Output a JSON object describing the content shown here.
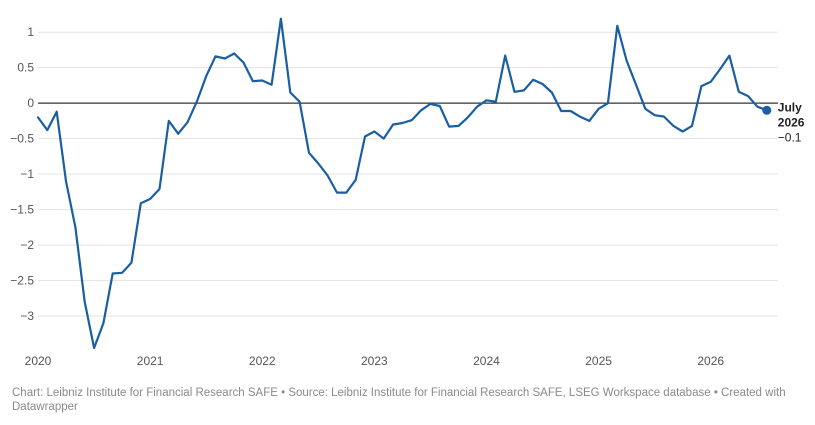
{
  "footer": {
    "text": "Chart: Leibniz Institute for Financial Research SAFE • Source: Leibniz Institute for Financial Research SAFE, LSEG Workspace database • Created with Datawrapper"
  },
  "chart_data": {
    "type": "line",
    "title": "",
    "xlabel": "",
    "ylabel": "",
    "ylim": [
      -3.45,
      1.2
    ],
    "xlim": [
      2020.0,
      2026.6
    ],
    "y_ticks": [
      {
        "value": 1,
        "label": "1"
      },
      {
        "value": 0.5,
        "label": "0.5"
      },
      {
        "value": 0,
        "label": "0"
      },
      {
        "value": -0.5,
        "label": "−0.5"
      },
      {
        "value": -1,
        "label": "−1"
      },
      {
        "value": -1.5,
        "label": "−1.5"
      },
      {
        "value": -2,
        "label": "−2"
      },
      {
        "value": -2.5,
        "label": "−2.5"
      },
      {
        "value": -3,
        "label": "−3"
      }
    ],
    "x_ticks": [
      {
        "value": 2020,
        "label": "2020"
      },
      {
        "value": 2021,
        "label": "2021"
      },
      {
        "value": 2022,
        "label": "2022"
      },
      {
        "value": 2023,
        "label": "2023"
      },
      {
        "value": 2024,
        "label": "2024"
      },
      {
        "value": 2025,
        "label": "2025"
      },
      {
        "value": 2026,
        "label": "2026"
      }
    ],
    "grid": true,
    "line_color": "#1a5ea3",
    "zero_line_color": "#333333",
    "end_label": {
      "date_line1": "July",
      "date_line2": "2026",
      "value": "−0.1"
    },
    "series": [
      {
        "x": [
          "2020-01",
          "2020-02",
          "2020-03",
          "2020-04",
          "2020-05",
          "2020-06",
          "2020-07",
          "2020-08",
          "2020-09",
          "2020-10",
          "2020-11",
          "2020-12",
          "2021-01",
          "2021-02",
          "2021-03",
          "2021-04",
          "2021-05",
          "2021-06",
          "2021-07",
          "2021-08",
          "2021-09",
          "2021-10",
          "2021-11",
          "2021-12",
          "2022-01",
          "2022-02",
          "2022-03",
          "2022-04",
          "2022-05",
          "2022-06",
          "2022-07",
          "2022-08",
          "2022-09",
          "2022-10",
          "2022-11",
          "2022-12",
          "2023-01",
          "2023-02",
          "2023-03",
          "2023-04",
          "2023-05",
          "2023-06",
          "2023-07",
          "2023-08",
          "2023-09",
          "2023-10",
          "2023-11",
          "2023-12",
          "2024-01",
          "2024-02",
          "2024-03",
          "2024-04",
          "2024-05",
          "2024-06",
          "2024-07",
          "2024-08",
          "2024-09",
          "2024-10",
          "2024-11",
          "2024-12",
          "2025-01",
          "2025-02",
          "2025-03",
          "2025-04",
          "2025-05",
          "2025-06",
          "2025-07",
          "2025-08",
          "2025-09",
          "2025-10",
          "2025-11",
          "2025-12",
          "2026-01",
          "2026-02",
          "2026-03",
          "2026-04",
          "2026-05",
          "2026-06",
          "2026-07"
        ],
        "y": [
          -0.2,
          -0.38,
          -0.12,
          -1.1,
          -1.75,
          -2.8,
          -3.45,
          -3.1,
          -2.4,
          -2.39,
          -2.25,
          -1.41,
          -1.35,
          -1.21,
          -0.25,
          -0.43,
          -0.27,
          0.02,
          0.38,
          0.66,
          0.63,
          0.7,
          0.57,
          0.31,
          0.32,
          0.26,
          1.19,
          0.15,
          0.02,
          -0.7,
          -0.85,
          -1.02,
          -1.26,
          -1.26,
          -1.08,
          -0.47,
          -0.4,
          -0.5,
          -0.3,
          -0.28,
          -0.24,
          -0.1,
          -0.01,
          -0.04,
          -0.33,
          -0.32,
          -0.2,
          -0.05,
          0.04,
          0.02,
          0.67,
          0.16,
          0.18,
          0.33,
          0.27,
          0.15,
          -0.11,
          -0.11,
          -0.19,
          -0.25,
          -0.08,
          0.0,
          1.09,
          0.6,
          0.26,
          -0.08,
          -0.17,
          -0.19,
          -0.32,
          -0.4,
          -0.32,
          0.24,
          0.3,
          0.48,
          0.67,
          0.16,
          0.1,
          -0.05,
          -0.1
        ]
      }
    ]
  }
}
